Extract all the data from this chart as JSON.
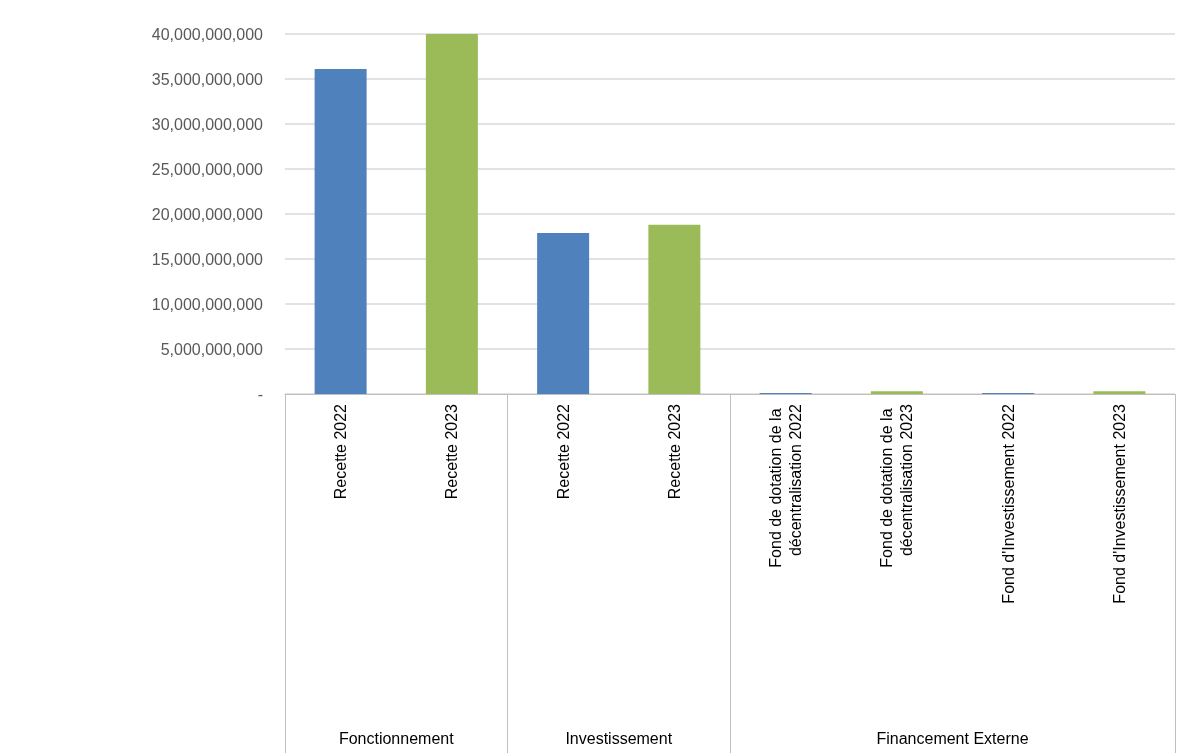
{
  "chart_data": {
    "type": "bar",
    "categories": [
      "Recette 2022",
      "Recette 2023",
      "Recette 2022",
      "Recette 2023",
      "Fond de dotation de la décentralisation 2022",
      "Fond de dotation de la décentralisation 2023",
      "Fond d'Investissement 2022",
      "Fond d'Investissement 2023"
    ],
    "values": [
      36100000000,
      40000000000,
      17900000000,
      18800000000,
      100000000,
      300000000,
      100000000,
      300000000
    ],
    "colors": [
      "#4f81bd",
      "#9bbb59",
      "#4f81bd",
      "#9bbb59",
      "#4f81bd",
      "#9bbb59",
      "#4f81bd",
      "#9bbb59"
    ],
    "ylim": [
      0,
      40000000000
    ],
    "yticks": [
      {
        "value": 0,
        "label": "-"
      },
      {
        "value": 5000000000,
        "label": "5,000,000,000"
      },
      {
        "value": 10000000000,
        "label": "10,000,000,000"
      },
      {
        "value": 15000000000,
        "label": "15,000,000,000"
      },
      {
        "value": 20000000000,
        "label": "20,000,000,000"
      },
      {
        "value": 25000000000,
        "label": "25,000,000,000"
      },
      {
        "value": 30000000000,
        "label": "30,000,000,000"
      },
      {
        "value": 35000000000,
        "label": "35,000,000,000"
      },
      {
        "value": 40000000000,
        "label": "40,000,000,000"
      }
    ],
    "annotations": [
      "Fonctionnement",
      "Investissement",
      "Financement Externe"
    ],
    "grid": "y"
  }
}
